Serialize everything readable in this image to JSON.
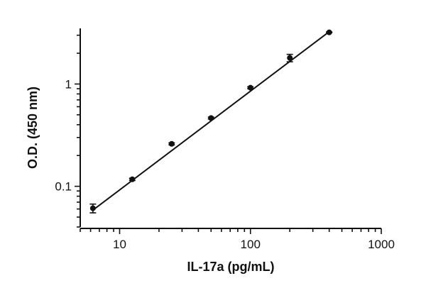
{
  "chart_data": {
    "type": "scatter",
    "title": "",
    "xlabel": "IL-17a (pg/mL)",
    "ylabel": "O.D. (450 nm)",
    "xscale": "log",
    "yscale": "log",
    "xlim": [
      5,
      1000
    ],
    "ylim": [
      0.04,
      3.5
    ],
    "x_ticks": [
      10,
      100,
      1000
    ],
    "x_tick_labels": [
      "10",
      "100",
      "1000"
    ],
    "y_ticks": [
      0.1,
      1
    ],
    "y_tick_labels": [
      "0.1",
      "1"
    ],
    "grid": false,
    "legend": "none",
    "series": [
      {
        "x": [
          6.25,
          12.5,
          25,
          50,
          100,
          200,
          400
        ],
        "y": [
          0.061,
          0.117,
          0.26,
          0.465,
          0.92,
          1.8,
          3.2
        ],
        "y_err": [
          0.006,
          0.003,
          0.006,
          0.01,
          0.02,
          0.15,
          0.03
        ]
      }
    ],
    "fit_line": {
      "x": [
        6.25,
        400
      ],
      "y": [
        0.0585,
        3.25
      ]
    },
    "colors": {
      "marker": "#111111",
      "line": "#111111",
      "axis": "#111111"
    }
  }
}
